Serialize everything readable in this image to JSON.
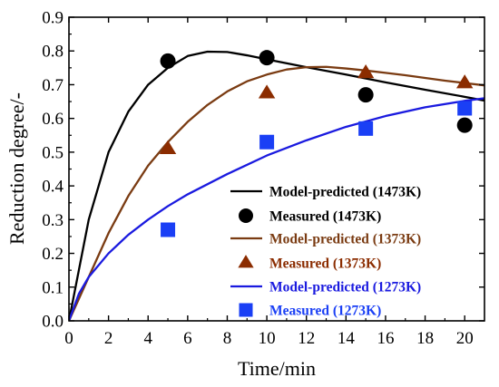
{
  "chart_data": {
    "type": "line",
    "title": "",
    "xlabel": "Time/min",
    "ylabel": "Reduction degree/-",
    "xlim": [
      0,
      21
    ],
    "ylim": [
      0,
      0.9
    ],
    "x_ticks": [
      0,
      2,
      4,
      6,
      8,
      10,
      12,
      14,
      16,
      18,
      20
    ],
    "y_ticks": [
      0.0,
      0.1,
      0.2,
      0.3,
      0.4,
      0.5,
      0.6,
      0.7,
      0.8,
      0.9
    ],
    "x_tick_labels": [
      "0",
      "2",
      "4",
      "6",
      "8",
      "10",
      "12",
      "14",
      "16",
      "18",
      "20"
    ],
    "y_tick_labels": [
      "0.0",
      "0.1",
      "0.2",
      "0.3",
      "0.4",
      "0.5",
      "0.6",
      "0.7",
      "0.8",
      "0.9"
    ],
    "grid": false,
    "legend_position": "bottom-right",
    "series": [
      {
        "name": "Model-predicted (1473K)",
        "kind": "line",
        "color": "#000000",
        "x": [
          0,
          0.5,
          1,
          2,
          3,
          4,
          5,
          6,
          7,
          8,
          9,
          10,
          12,
          14,
          16,
          18,
          20,
          21
        ],
        "y": [
          0,
          0.15,
          0.3,
          0.5,
          0.62,
          0.7,
          0.75,
          0.785,
          0.798,
          0.797,
          0.787,
          0.775,
          0.752,
          0.73,
          0.707,
          0.685,
          0.664,
          0.653
        ]
      },
      {
        "name": "Measured (1473K)",
        "kind": "scatter",
        "marker": "circle",
        "color": "#000000",
        "x": [
          5,
          10,
          15,
          20
        ],
        "y": [
          0.77,
          0.78,
          0.67,
          0.58
        ]
      },
      {
        "name": "Model-predicted (1373K)",
        "kind": "line",
        "color": "#7a3b12",
        "x": [
          0,
          1,
          2,
          3,
          4,
          5,
          6,
          7,
          8,
          9,
          10,
          11,
          12,
          13,
          14,
          15,
          16,
          17,
          18,
          19,
          20,
          21
        ],
        "y": [
          0,
          0.13,
          0.26,
          0.37,
          0.46,
          0.53,
          0.59,
          0.64,
          0.68,
          0.71,
          0.73,
          0.745,
          0.752,
          0.753,
          0.748,
          0.742,
          0.735,
          0.728,
          0.72,
          0.712,
          0.705,
          0.698
        ]
      },
      {
        "name": "Measured (1373K)",
        "kind": "scatter",
        "marker": "triangle",
        "color": "#8b2c00",
        "x": [
          5,
          10,
          15,
          20
        ],
        "y": [
          0.51,
          0.675,
          0.735,
          0.705
        ]
      },
      {
        "name": "Model-predicted (1273K)",
        "kind": "line",
        "color": "#1a1adf",
        "x": [
          0,
          0.5,
          1,
          2,
          3,
          4,
          5,
          6,
          8,
          10,
          12,
          14,
          16,
          18,
          20,
          21
        ],
        "y": [
          0,
          0.08,
          0.13,
          0.2,
          0.255,
          0.3,
          0.34,
          0.375,
          0.435,
          0.49,
          0.535,
          0.575,
          0.607,
          0.633,
          0.652,
          0.66
        ]
      },
      {
        "name": "Measured (1273K)",
        "kind": "scatter",
        "marker": "square",
        "color": "#1a3ff5",
        "x": [
          5,
          10,
          15,
          20
        ],
        "y": [
          0.27,
          0.53,
          0.57,
          0.63
        ]
      }
    ]
  }
}
